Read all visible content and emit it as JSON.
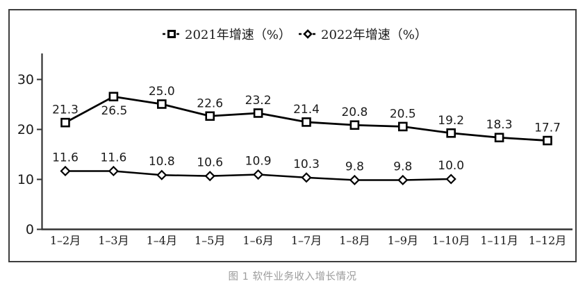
{
  "caption": "图 1  软件业务收入增长情况",
  "chart_data": {
    "type": "line",
    "title": "",
    "xlabel": "",
    "ylabel": "",
    "categories": [
      "1–2月",
      "1–3月",
      "1–4月",
      "1–5月",
      "1–6月",
      "1–7月",
      "1–8月",
      "1–9月",
      "1–10月",
      "1–11月",
      "1–12月"
    ],
    "series": [
      {
        "name": "2021年增速（%）",
        "marker": "square",
        "color": "#000000",
        "values": [
          21.3,
          26.5,
          25.0,
          22.6,
          23.2,
          21.4,
          20.8,
          20.5,
          19.2,
          18.3,
          17.7
        ],
        "labels": [
          "21.3",
          "26.5",
          "25.0",
          "22.6",
          "23.2",
          "21.4",
          "20.8",
          "20.5",
          "19.2",
          "18.3",
          "17.7"
        ]
      },
      {
        "name": "2022年增速（%）",
        "marker": "diamond",
        "color": "#000000",
        "values": [
          11.6,
          11.6,
          10.8,
          10.6,
          10.9,
          10.3,
          9.8,
          9.8,
          10.0
        ],
        "labels": [
          "11.6",
          "11.6",
          "10.8",
          "10.6",
          "10.9",
          "10.3",
          "9.8",
          "9.8",
          "10.0"
        ]
      }
    ],
    "yticks": [
      0,
      10,
      20,
      30
    ],
    "ylim": [
      0,
      35
    ],
    "grid": false,
    "legend_position": "top",
    "axis_color": "#333333",
    "text_color": "#1a1a1a"
  }
}
